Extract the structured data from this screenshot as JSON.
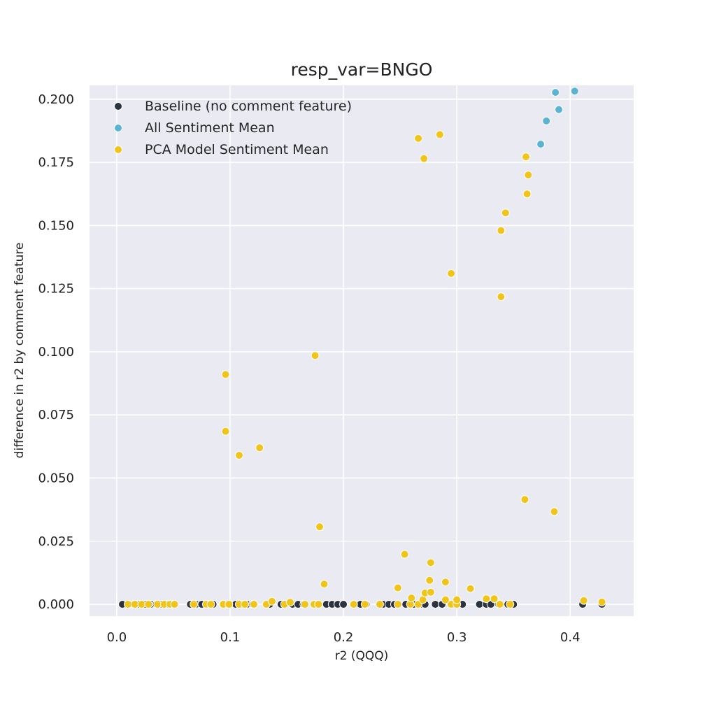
{
  "chart_data": {
    "type": "scatter",
    "title": "resp_var=BNGO",
    "xlabel": "r2 (QQQ)",
    "ylabel": "difference in r2 by comment feature",
    "xlim": [
      -0.024,
      0.456
    ],
    "ylim": [
      -0.0047,
      0.2055
    ],
    "xticks": [
      "0.0",
      "0.1",
      "0.2",
      "0.3",
      "0.4"
    ],
    "xtick_values": [
      0.0,
      0.1,
      0.2,
      0.3,
      0.4
    ],
    "yticks": [
      "0.000",
      "0.025",
      "0.050",
      "0.075",
      "0.100",
      "0.125",
      "0.150",
      "0.175",
      "0.200"
    ],
    "ytick_values": [
      0.0,
      0.025,
      0.05,
      0.075,
      0.1,
      0.125,
      0.15,
      0.175,
      0.2
    ],
    "grid": true,
    "legend_position": "top-left",
    "series": [
      {
        "name": "Baseline (no comment feature)",
        "color": "#2b3240",
        "points": [
          [
            0.005,
            0
          ],
          [
            0.01,
            0
          ],
          [
            0.015,
            0
          ],
          [
            0.02,
            0
          ],
          [
            0.025,
            0
          ],
          [
            0.03,
            0
          ],
          [
            0.035,
            0
          ],
          [
            0.04,
            0
          ],
          [
            0.045,
            0
          ],
          [
            0.05,
            0
          ],
          [
            0.065,
            0
          ],
          [
            0.07,
            0
          ],
          [
            0.075,
            0
          ],
          [
            0.08,
            0
          ],
          [
            0.085,
            0
          ],
          [
            0.095,
            0
          ],
          [
            0.1,
            0
          ],
          [
            0.105,
            0
          ],
          [
            0.11,
            0
          ],
          [
            0.115,
            0
          ],
          [
            0.12,
            0
          ],
          [
            0.135,
            0
          ],
          [
            0.145,
            0
          ],
          [
            0.155,
            0
          ],
          [
            0.16,
            0
          ],
          [
            0.165,
            0
          ],
          [
            0.175,
            0
          ],
          [
            0.178,
            0
          ],
          [
            0.185,
            0
          ],
          [
            0.19,
            0
          ],
          [
            0.195,
            0
          ],
          [
            0.2,
            0
          ],
          [
            0.215,
            0
          ],
          [
            0.22,
            0
          ],
          [
            0.235,
            0
          ],
          [
            0.24,
            0
          ],
          [
            0.245,
            0
          ],
          [
            0.255,
            0
          ],
          [
            0.262,
            0
          ],
          [
            0.268,
            0
          ],
          [
            0.272,
            0
          ],
          [
            0.281,
            0
          ],
          [
            0.287,
            0
          ],
          [
            0.298,
            0
          ],
          [
            0.305,
            0
          ],
          [
            0.32,
            0
          ],
          [
            0.326,
            0
          ],
          [
            0.33,
            0
          ],
          [
            0.337,
            0
          ],
          [
            0.345,
            0
          ],
          [
            0.35,
            0
          ],
          [
            0.411,
            0
          ],
          [
            0.428,
            0
          ]
        ]
      },
      {
        "name": "All Sentiment Mean",
        "color": "#5bb3d4",
        "points": [
          [
            0.387,
            0.2027
          ],
          [
            0.404,
            0.2032
          ],
          [
            0.39,
            0.1959
          ],
          [
            0.379,
            0.1914
          ],
          [
            0.374,
            0.1822
          ]
        ]
      },
      {
        "name": "PCA Model Sentiment Mean",
        "color": "#f0c419",
        "points": [
          [
            0.01,
            0
          ],
          [
            0.016,
            0
          ],
          [
            0.022,
            0
          ],
          [
            0.028,
            0
          ],
          [
            0.036,
            0
          ],
          [
            0.042,
            0
          ],
          [
            0.047,
            0
          ],
          [
            0.051,
            0
          ],
          [
            0.068,
            0
          ],
          [
            0.079,
            0
          ],
          [
            0.083,
            0
          ],
          [
            0.094,
            0
          ],
          [
            0.099,
            0
          ],
          [
            0.108,
            0
          ],
          [
            0.113,
            0
          ],
          [
            0.121,
            0
          ],
          [
            0.132,
            0
          ],
          [
            0.148,
            0
          ],
          [
            0.166,
            0
          ],
          [
            0.174,
            0
          ],
          [
            0.178,
            0
          ],
          [
            0.209,
            0
          ],
          [
            0.219,
            0
          ],
          [
            0.232,
            0
          ],
          [
            0.248,
            0
          ],
          [
            0.259,
            0
          ],
          [
            0.266,
            0
          ],
          [
            0.295,
            0
          ],
          [
            0.3,
            0
          ],
          [
            0.338,
            0
          ],
          [
            0.347,
            0
          ],
          [
            0.137,
            0.0012
          ],
          [
            0.153,
            0.0008
          ],
          [
            0.27,
            0.0018
          ],
          [
            0.29,
            0.0018
          ],
          [
            0.3,
            0.0018
          ],
          [
            0.26,
            0.0025
          ],
          [
            0.326,
            0.0022
          ],
          [
            0.333,
            0.0022
          ],
          [
            0.412,
            0.0015
          ],
          [
            0.428,
            0.0009
          ],
          [
            0.272,
            0.0045
          ],
          [
            0.277,
            0.0048
          ],
          [
            0.312,
            0.0062
          ],
          [
            0.248,
            0.0065
          ],
          [
            0.183,
            0.008
          ],
          [
            0.276,
            0.0095
          ],
          [
            0.29,
            0.0088
          ],
          [
            0.277,
            0.0165
          ],
          [
            0.254,
            0.0198
          ],
          [
            0.179,
            0.0307
          ],
          [
            0.386,
            0.0367
          ],
          [
            0.36,
            0.0415
          ],
          [
            0.108,
            0.059
          ],
          [
            0.126,
            0.062
          ],
          [
            0.096,
            0.0685
          ],
          [
            0.096,
            0.091
          ],
          [
            0.175,
            0.0985
          ],
          [
            0.339,
            0.1218
          ],
          [
            0.295,
            0.131
          ],
          [
            0.339,
            0.148
          ],
          [
            0.343,
            0.155
          ],
          [
            0.362,
            0.1625
          ],
          [
            0.363,
            0.17
          ],
          [
            0.361,
            0.1772
          ],
          [
            0.271,
            0.1765
          ],
          [
            0.266,
            0.1845
          ],
          [
            0.285,
            0.186
          ]
        ]
      }
    ]
  }
}
